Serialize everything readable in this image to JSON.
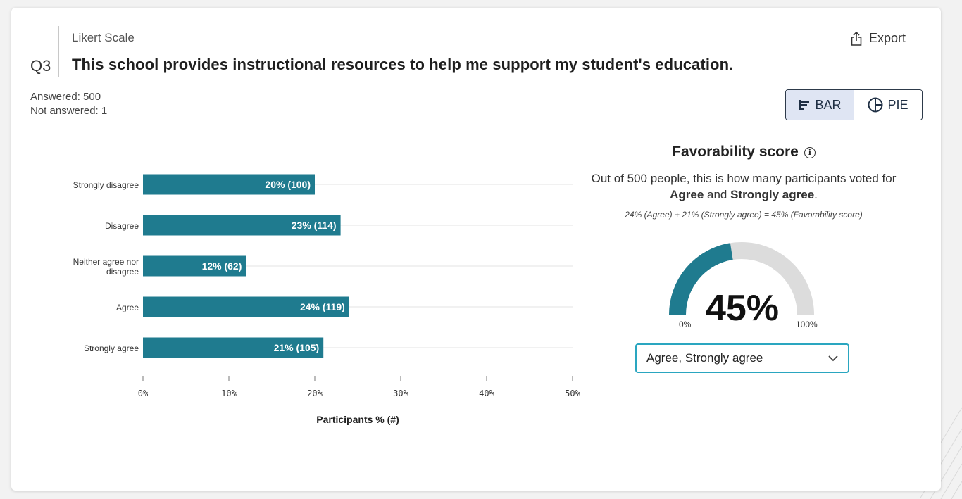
{
  "question": {
    "number": "Q3",
    "type": "Likert Scale",
    "title": "This school provides instructional resources to help me support my student's education."
  },
  "export_label": "Export",
  "stats": {
    "answered": "Answered: 500",
    "not_answered": "Not answered: 1"
  },
  "view_toggle": {
    "bar_label": "BAR",
    "pie_label": "PIE",
    "selected": "BAR"
  },
  "chart_data": {
    "type": "bar",
    "orientation": "horizontal",
    "categories": [
      "Strongly disagree",
      "Disagree",
      "Neither agree nor disagree",
      "Agree",
      "Strongly agree"
    ],
    "values": [
      20,
      23,
      12,
      24,
      21
    ],
    "counts": [
      100,
      114,
      62,
      119,
      105
    ],
    "data_labels": [
      "20% (100)",
      "23% (114)",
      "12% (62)",
      "24% (119)",
      "21% (105)"
    ],
    "xlim": [
      0,
      50
    ],
    "x_ticks": [
      "0%",
      "10%",
      "20%",
      "30%",
      "40%",
      "50%"
    ],
    "xlabel": "Participants % (#)",
    "ylabel": "",
    "grid": true,
    "bar_color": "#1f7b8f"
  },
  "favorability": {
    "title": "Favorability score",
    "description_pre": "Out of 500 people, this is how many participants voted for ",
    "agree": "Agree",
    "and": " and ",
    "strongly_agree": "Strongly agree",
    "period": ".",
    "formula": "24% (Agree) + 21% (Strongly agree) = 45% (Favorability score)",
    "score": 45,
    "score_label": "45%",
    "min_label": "0%",
    "max_label": "100%",
    "gauge_color": "#1f7b8f",
    "gauge_track_color": "#dcdcdc"
  },
  "response_select": {
    "value": "Agree, Strongly agree"
  }
}
